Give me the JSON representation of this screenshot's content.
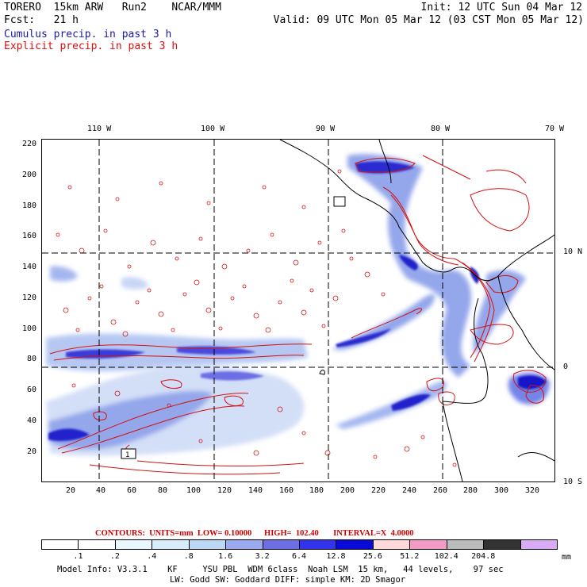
{
  "header": {
    "model": "TORERO  15km ARW   Run2    NCAR/MMM",
    "init": "Init: 12 UTC Sun 04 Mar 12",
    "fcst_label": "Fcst:   21 h",
    "valid": "Valid: 09 UTC Mon 05 Mar 12 (03 CST Mon 05 Mar 12)",
    "cumulus_label": "Cumulus precip. in past 3 h",
    "explicit_label": "Explicit precip. in past 3 h"
  },
  "colors": {
    "cumulus": "#1a1aa6",
    "explicit": "#d41111",
    "grid": "#000000"
  },
  "map": {
    "longitude_labels": [
      "110 W",
      "100 W",
      "90 W",
      "80 W",
      "70 W"
    ],
    "latitude_labels": [
      "10 N",
      "0",
      "10 S"
    ],
    "x_ticks": [
      "20",
      "40",
      "60",
      "80",
      "100",
      "120",
      "140",
      "160",
      "180",
      "200",
      "220",
      "240",
      "260",
      "280",
      "300",
      "320"
    ],
    "y_ticks": [
      "220",
      "200",
      "180",
      "160",
      "140",
      "120",
      "100",
      "80",
      "60",
      "40",
      "20"
    ],
    "x_range": [
      1,
      335
    ],
    "y_range": [
      1,
      225
    ],
    "grid_x": [
      37.5,
      112.5,
      187.5,
      262.5
    ],
    "grid_y": [
      75,
      150
    ],
    "box_label": "1"
  },
  "contours_line": "CONTOURS:  UNITS=mm  LOW= 0.10000      HIGH=  102.40       INTERVAL=X  4.0000",
  "colorbar": {
    "units": "mm",
    "labels": [
      ".1",
      ".2",
      ".4",
      ".8",
      "1.6",
      "3.2",
      "6.4",
      "12.8",
      "25.6",
      "51.2",
      "102.4",
      "204.8"
    ],
    "colors": [
      "#ffffff",
      "#ffffff",
      "#e8f8fc",
      "#d7eefa",
      "#bcd7f4",
      "#9aaaee",
      "#6d6de4",
      "#3333ee",
      "#0a0ad8",
      "#ffd9d9",
      "#f39ac5",
      "#bbbbbb",
      "#333333",
      "#d9aaf5"
    ]
  },
  "model_info": {
    "line1": "Model Info: V3.3.1    KF     YSU PBL  WDM 6class  Noah LSM  15 km,   44 levels,    97 sec",
    "line2": "LW: Godd SW: Goddard DIFF: simple KM: 2D Smagor"
  }
}
